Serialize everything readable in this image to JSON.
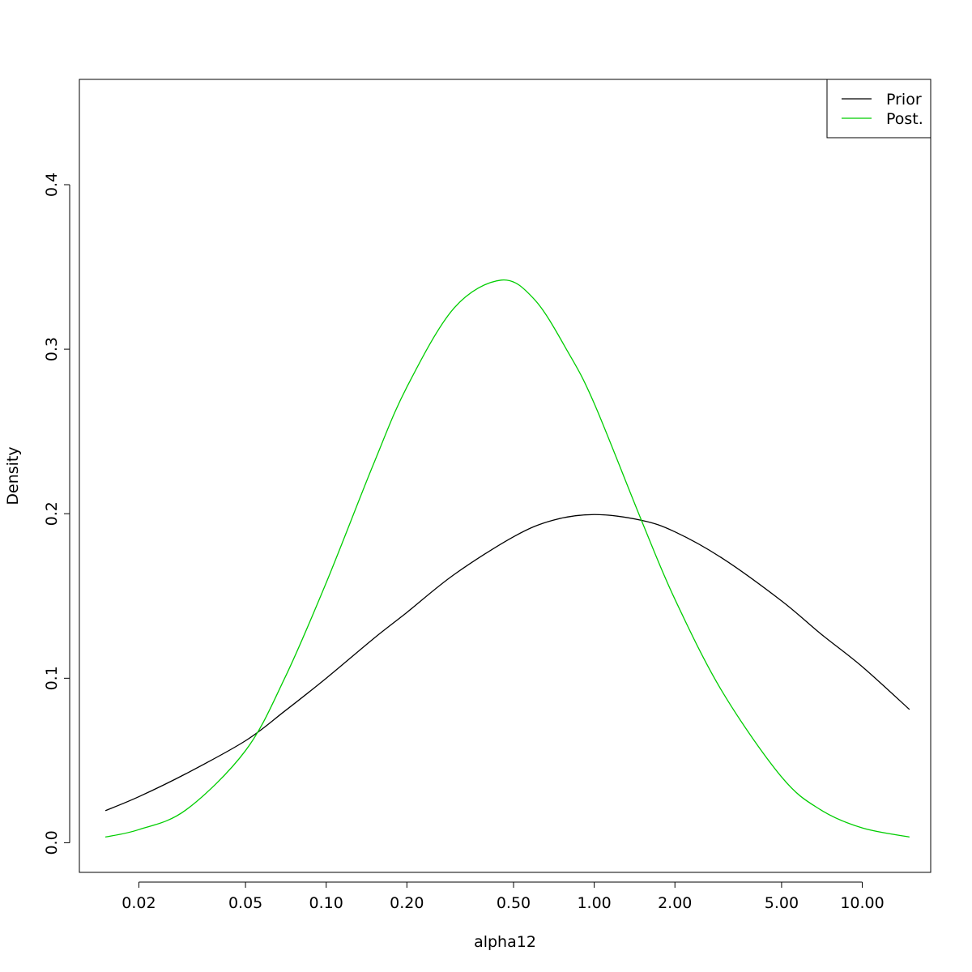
{
  "chart_data": {
    "type": "line",
    "title": "",
    "xlabel": "alpha12",
    "ylabel": "Density",
    "x_scale": "log",
    "xlim": [
      0.012,
      18
    ],
    "ylim": [
      -0.018,
      0.464
    ],
    "x_ticks": [
      0.02,
      0.05,
      0.1,
      0.2,
      0.5,
      1.0,
      2.0,
      5.0,
      10.0
    ],
    "x_tick_labels": [
      "0.02",
      "0.05",
      "0.10",
      "0.20",
      "0.50",
      "1.00",
      "2.00",
      "5.00",
      "10.00"
    ],
    "y_ticks": [
      0.0,
      0.1,
      0.2,
      0.3,
      0.4
    ],
    "y_tick_labels": [
      "0.0",
      "0.1",
      "0.2",
      "0.3",
      "0.4"
    ],
    "grid": false,
    "legend": {
      "position": "top-right",
      "entries": [
        {
          "label": "Prior",
          "color": "#000000"
        },
        {
          "label": "Post.",
          "color": "#00cd00"
        }
      ]
    },
    "series": [
      {
        "name": "Prior",
        "color": "#000000",
        "points": [
          [
            0.015,
            0.0195
          ],
          [
            0.02,
            0.028
          ],
          [
            0.03,
            0.042
          ],
          [
            0.05,
            0.062
          ],
          [
            0.07,
            0.08
          ],
          [
            0.1,
            0.1
          ],
          [
            0.15,
            0.124
          ],
          [
            0.2,
            0.14
          ],
          [
            0.3,
            0.163
          ],
          [
            0.5,
            0.186
          ],
          [
            0.7,
            0.196
          ],
          [
            1.0,
            0.1995
          ],
          [
            1.5,
            0.196
          ],
          [
            2.0,
            0.189
          ],
          [
            3.0,
            0.173
          ],
          [
            5.0,
            0.147
          ],
          [
            7.0,
            0.127
          ],
          [
            10.0,
            0.107
          ],
          [
            15.0,
            0.081
          ]
        ]
      },
      {
        "name": "Post.",
        "color": "#00cd00",
        "points": [
          [
            0.015,
            0.0035
          ],
          [
            0.02,
            0.008
          ],
          [
            0.03,
            0.02
          ],
          [
            0.05,
            0.056
          ],
          [
            0.07,
            0.1
          ],
          [
            0.1,
            0.158
          ],
          [
            0.15,
            0.23
          ],
          [
            0.2,
            0.277
          ],
          [
            0.3,
            0.325
          ],
          [
            0.45,
            0.342
          ],
          [
            0.6,
            0.33
          ],
          [
            0.8,
            0.298
          ],
          [
            1.0,
            0.267
          ],
          [
            1.5,
            0.196
          ],
          [
            2.0,
            0.148
          ],
          [
            3.0,
            0.092
          ],
          [
            5.0,
            0.04
          ],
          [
            7.0,
            0.02
          ],
          [
            10.0,
            0.009
          ],
          [
            15.0,
            0.0035
          ]
        ]
      }
    ]
  }
}
